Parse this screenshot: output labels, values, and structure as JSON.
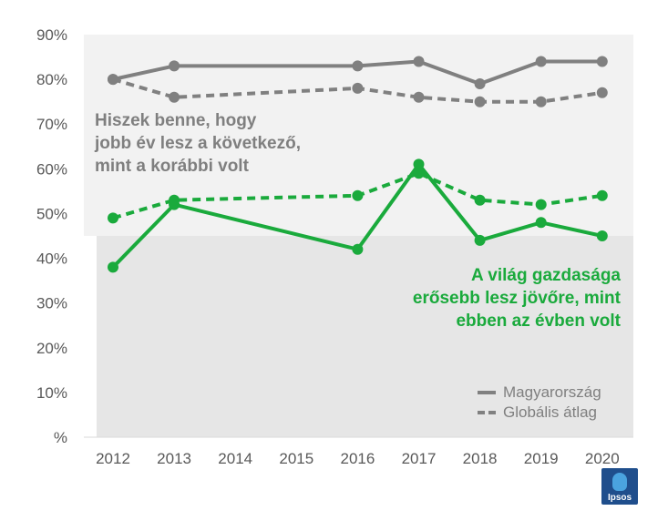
{
  "chart_data": {
    "type": "line",
    "categories": [
      "2012",
      "2013",
      "2014",
      "2015",
      "2016",
      "2017",
      "2018",
      "2019",
      "2020"
    ],
    "y_ticks": [
      "90%",
      "80%",
      "70%",
      "60%",
      "50%",
      "40%",
      "30%",
      "20%",
      "10%",
      "%"
    ],
    "ylim": [
      0,
      90
    ],
    "series": [
      {
        "name": "Magyarország",
        "group": "gray",
        "style": "solid",
        "color": "#808080",
        "values": [
          80,
          83,
          null,
          null,
          83,
          84,
          79,
          84,
          84
        ]
      },
      {
        "name": "Globális átlag",
        "group": "gray",
        "style": "dashed",
        "color": "#808080",
        "values": [
          80,
          76,
          null,
          null,
          78,
          76,
          75,
          75,
          77
        ]
      },
      {
        "name": "Magyarország",
        "group": "green",
        "style": "solid",
        "color": "#1aaa3c",
        "values": [
          38,
          52,
          null,
          null,
          42,
          61,
          44,
          48,
          45
        ]
      },
      {
        "name": "Globális átlag",
        "group": "green",
        "style": "dashed",
        "color": "#1aaa3c",
        "values": [
          49,
          53,
          null,
          null,
          54,
          59,
          53,
          52,
          54
        ]
      }
    ],
    "annotations": {
      "gray": [
        "Hiszek benne, hogy",
        "jobb év lesz a következő,",
        "mint a korábbi volt"
      ],
      "green": [
        "A világ gazdasága",
        "erősebb lesz jövőre, mint",
        "ebben az évben volt"
      ]
    },
    "legend": [
      {
        "label": "Magyarország",
        "style": "solid"
      },
      {
        "label": "Globális átlag",
        "style": "dashed"
      }
    ],
    "band_colors": {
      "upper": "#f2f2f2",
      "lower": "#e6e6e6"
    },
    "band_split_value": 45
  },
  "logo": {
    "text": "Ipsos",
    "color": "#1f4e8c"
  }
}
